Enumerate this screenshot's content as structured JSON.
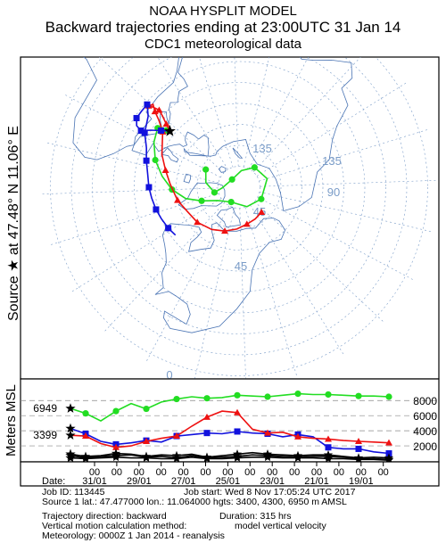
{
  "title": {
    "line1": "NOAA HYSPLIT MODEL",
    "line2": "Backward trajectories ending at 23:00UTC 31 Jan 14",
    "line3": "CDC1 meteorological data"
  },
  "side_label": "Source ★ at   47.48° N   11.06° E",
  "height_axis_label": "Meters MSL",
  "map_labels": [
    "135",
    "135",
    "90",
    "45",
    "45",
    "0"
  ],
  "colors": {
    "red": "#ee1111",
    "blue": "#1111dd",
    "green": "#22dd22",
    "black": "#000000",
    "grid": "#7a9cc8",
    "coast": "#4a74b4"
  },
  "chart_data": {
    "type": "line",
    "title": "Backward trajectories ending at 23:00UTC 31 Jan 14",
    "ylabel": "Meters MSL",
    "xlabel": "Date",
    "x_hours_back": [
      0,
      15,
      30,
      45,
      60,
      75,
      90,
      105,
      120,
      135,
      150,
      165,
      180,
      195,
      210,
      225,
      240,
      255,
      270,
      285,
      300,
      315
    ],
    "yticks": [
      2000,
      4000,
      6000,
      8000
    ],
    "ylim": [
      0,
      9800
    ],
    "start_heights_labels": [
      "6949",
      "3399"
    ],
    "series": [
      {
        "color": "green",
        "start": 6949,
        "values": [
          6949,
          6300,
          5300,
          6600,
          7600,
          6900,
          7800,
          8200,
          8500,
          8300,
          8400,
          8700,
          8600,
          8500,
          8700,
          8900,
          8800,
          8800,
          8700,
          8600,
          8600,
          8500
        ]
      },
      {
        "color": "blue",
        "start": 4300,
        "values": [
          4300,
          3600,
          2600,
          2200,
          2400,
          2700,
          2500,
          3300,
          3500,
          3700,
          3600,
          3900,
          3700,
          3600,
          3200,
          3500,
          3200,
          1800,
          1600,
          1600,
          1200,
          1000
        ]
      },
      {
        "color": "red",
        "start": 3399,
        "values": [
          3399,
          3300,
          2300,
          1800,
          2000,
          2600,
          3000,
          3300,
          4600,
          5800,
          6600,
          6400,
          4200,
          3700,
          3800,
          3200,
          3000,
          2900,
          2700,
          2600,
          2500,
          2400
        ]
      },
      {
        "color": "black",
        "start": 900,
        "values": [
          900,
          600,
          700,
          1000,
          900,
          600,
          800,
          700,
          900,
          500,
          700,
          900,
          1100,
          900,
          800,
          700,
          800,
          800,
          600,
          400,
          500,
          400
        ]
      },
      {
        "color": "black",
        "start": 700,
        "values": [
          700,
          400,
          600,
          700,
          800,
          500,
          600,
          400,
          700,
          400,
          500,
          600,
          800,
          700,
          600,
          500,
          600,
          600,
          500,
          300,
          300,
          200
        ]
      },
      {
        "color": "black",
        "start": 400,
        "values": [
          400,
          300,
          400,
          500,
          400,
          400,
          300,
          300,
          500,
          300,
          300,
          400,
          500,
          500,
          400,
          400,
          400,
          300,
          300,
          200,
          200,
          100
        ]
      }
    ],
    "time_tick_top": [
      "00",
      "00",
      "00",
      "00",
      "00",
      "00",
      "00",
      "00",
      "00",
      "00",
      "00",
      "00",
      "00",
      "00"
    ],
    "date_labels": [
      "31/01",
      "29/01",
      "27/01",
      "25/01",
      "23/01",
      "21/01",
      "19/01"
    ],
    "date_row_label": "Date:"
  },
  "map": {
    "source": {
      "lat": 47.48,
      "lon": 11.06
    },
    "trajectories": {
      "red": [
        [
          47.5,
          11.1
        ],
        [
          44,
          13
        ],
        [
          40,
          15
        ],
        [
          37,
          16
        ],
        [
          34,
          15
        ],
        [
          32,
          14
        ],
        [
          33,
          16
        ],
        [
          36,
          14
        ],
        [
          40,
          12
        ],
        [
          45,
          8
        ],
        [
          50,
          -5
        ],
        [
          54,
          -15
        ],
        [
          57,
          -25
        ],
        [
          60,
          -40
        ],
        [
          63,
          -55
        ],
        [
          64,
          -68
        ],
        [
          66,
          -85
        ],
        [
          68,
          -100
        ],
        [
          70,
          -115
        ],
        [
          72,
          -130
        ],
        [
          73,
          -145
        ],
        [
          74,
          -160
        ]
      ],
      "blue": [
        [
          47.5,
          11.1
        ],
        [
          44,
          8
        ],
        [
          40,
          5
        ],
        [
          36,
          2
        ],
        [
          33,
          3
        ],
        [
          31,
          6
        ],
        [
          31,
          10
        ],
        [
          31,
          14
        ],
        [
          35,
          10
        ],
        [
          38,
          2
        ],
        [
          42,
          -5
        ],
        [
          44,
          -12
        ],
        [
          46,
          -20
        ],
        [
          47,
          -28
        ],
        [
          48,
          -35
        ],
        [
          49,
          -43
        ],
        [
          50,
          -50
        ],
        [
          51,
          -58
        ],
        [
          52,
          -65
        ]
      ],
      "green": [
        [
          47.5,
          11.1
        ],
        [
          46,
          10
        ],
        [
          44,
          10
        ],
        [
          42,
          8
        ],
        [
          44,
          0
        ],
        [
          48,
          -10
        ],
        [
          53,
          -20
        ],
        [
          58,
          -30
        ],
        [
          64,
          -40
        ],
        [
          71,
          -48
        ],
        [
          78,
          -60
        ],
        [
          82,
          -90
        ],
        [
          80,
          -140
        ],
        [
          78,
          -180
        ],
        [
          76,
          135
        ],
        [
          78,
          100
        ],
        [
          82,
          70
        ],
        [
          85,
          20
        ],
        [
          82,
          -30
        ],
        [
          78,
          -40
        ],
        [
          74,
          -20
        ],
        [
          72,
          0
        ]
      ]
    }
  },
  "info": {
    "line1_left": "Job ID: 113445",
    "line1_right": "Job start: Wed 8 Nov 17:05:24 UTC 2017",
    "line2": "Source 1 lat.: 47.477000  lon.: 11.064000  hgts: 3400, 4300, 6950 m AMSL",
    "line3_left": "Trajectory direction: backward",
    "line3_right": "Duration: 315 hrs",
    "line4_left": "Vertical motion calculation method:",
    "line4_right": "model vertical velocity",
    "line5": "Meteorology: 0000Z  1 Jan 2014 - reanalysis"
  }
}
